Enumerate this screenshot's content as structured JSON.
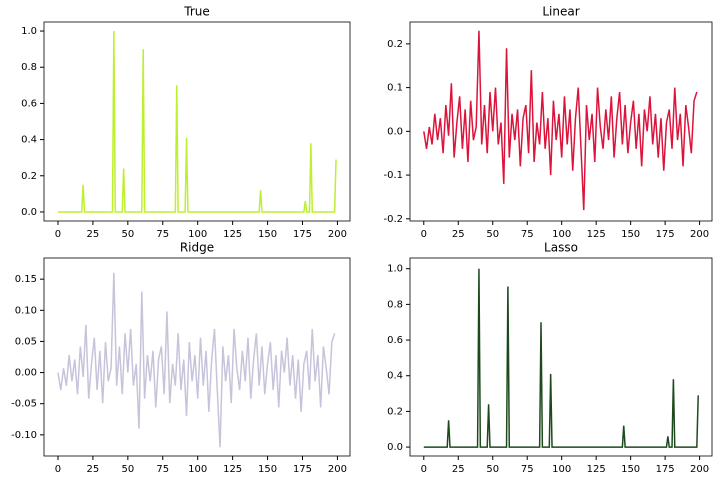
{
  "chart_data": [
    {
      "type": "line",
      "title": "True",
      "color": "#bdf02e",
      "x": [
        0,
        17,
        18,
        19,
        39,
        40,
        41,
        46,
        47,
        48,
        60,
        61,
        62,
        84,
        85,
        86,
        91,
        92,
        93,
        144,
        145,
        146,
        176,
        177,
        178,
        180,
        181,
        182,
        198,
        199
      ],
      "values": [
        0,
        0,
        0.15,
        0,
        0,
        1,
        0,
        0,
        0.24,
        0,
        0,
        0.9,
        0,
        0,
        0.7,
        0,
        0,
        0.41,
        0,
        0,
        0.12,
        0,
        0,
        0.06,
        0,
        0,
        0.38,
        0,
        0,
        0.29
      ],
      "xlim": [
        -10,
        209
      ],
      "xticks": [
        0,
        25,
        50,
        75,
        100,
        125,
        150,
        175,
        200
      ],
      "ylim": [
        -0.05,
        1.05
      ],
      "yticks": [
        {
          "value": 0,
          "label": "0.0"
        },
        0.2,
        0.4,
        0.6,
        0.8,
        {
          "value": 1,
          "label": "1.0"
        }
      ]
    },
    {
      "type": "line",
      "title": "Linear",
      "color": "#dc143c",
      "x": [
        0,
        2,
        4,
        6,
        8,
        10,
        12,
        14,
        16,
        18,
        20,
        22,
        24,
        26,
        28,
        30,
        32,
        34,
        36,
        38,
        40,
        42,
        44,
        46,
        48,
        50,
        52,
        54,
        56,
        58,
        60,
        62,
        64,
        66,
        68,
        70,
        72,
        74,
        76,
        78,
        80,
        82,
        84,
        86,
        88,
        90,
        92,
        94,
        96,
        98,
        100,
        102,
        104,
        106,
        108,
        110,
        112,
        114,
        116,
        118,
        120,
        122,
        124,
        126,
        128,
        130,
        132,
        134,
        136,
        138,
        140,
        142,
        144,
        146,
        148,
        150,
        152,
        154,
        156,
        158,
        160,
        162,
        164,
        166,
        168,
        170,
        172,
        174,
        176,
        178,
        180,
        182,
        184,
        186,
        188,
        190,
        192,
        194,
        196,
        198
      ],
      "values": [
        0,
        -0.04,
        0.01,
        -0.03,
        0.04,
        -0.02,
        0.03,
        -0.05,
        0.06,
        -0.01,
        0.11,
        -0.06,
        0.02,
        0.08,
        -0.04,
        0.05,
        -0.07,
        0.07,
        -0.02,
        0.01,
        0.23,
        -0.03,
        0.06,
        -0.05,
        0.09,
        0,
        0.1,
        -0.03,
        0.02,
        -0.12,
        0.19,
        -0.06,
        0.04,
        -0.02,
        0.05,
        -0.08,
        0.03,
        0.06,
        -0.05,
        0.14,
        -0.07,
        0.02,
        -0.03,
        0.09,
        -0.04,
        0.03,
        -0.1,
        0.07,
        -0.02,
        0.04,
        -0.06,
        0.08,
        -0.03,
        0.05,
        -0.09,
        0.03,
        0.1,
        -0.04,
        -0.18,
        0.06,
        -0.02,
        0.04,
        -0.07,
        0.1,
        0.01,
        -0.04,
        0.05,
        -0.02,
        0.08,
        -0.06,
        0.03,
        0.09,
        -0.03,
        0.06,
        -0.05,
        0.02,
        0.07,
        -0.04,
        0.04,
        -0.08,
        0.05,
        0,
        0.08,
        -0.03,
        0.04,
        -0.06,
        0.03,
        -0.09,
        0.02,
        0.05,
        -0.04,
        0.1,
        -0.02,
        0.04,
        -0.08,
        0.06,
        0.01,
        -0.05,
        0.07,
        0.09
      ],
      "xlim": [
        -10,
        209
      ],
      "xticks": [
        0,
        25,
        50,
        75,
        100,
        125,
        150,
        175,
        200
      ],
      "ylim": [
        -0.205,
        0.25
      ],
      "yticks": [
        -0.2,
        -0.1,
        {
          "value": 0,
          "label": "0.0"
        },
        0.1,
        0.2
      ]
    },
    {
      "type": "line",
      "title": "Ridge",
      "color": "#c6c4da",
      "x": [
        0,
        2,
        4,
        6,
        8,
        10,
        12,
        14,
        16,
        18,
        20,
        22,
        24,
        26,
        28,
        30,
        32,
        34,
        36,
        38,
        40,
        42,
        44,
        46,
        48,
        50,
        52,
        54,
        56,
        58,
        60,
        62,
        64,
        66,
        68,
        70,
        72,
        74,
        76,
        78,
        80,
        82,
        84,
        86,
        88,
        90,
        92,
        94,
        96,
        98,
        100,
        102,
        104,
        106,
        108,
        110,
        112,
        114,
        116,
        118,
        120,
        122,
        124,
        126,
        128,
        130,
        132,
        134,
        136,
        138,
        140,
        142,
        144,
        146,
        148,
        150,
        152,
        154,
        156,
        158,
        160,
        162,
        164,
        166,
        168,
        170,
        172,
        174,
        176,
        178,
        180,
        182,
        184,
        186,
        188,
        190,
        192,
        194,
        196,
        198
      ],
      "values": [
        0,
        -0.028,
        0.007,
        -0.021,
        0.028,
        -0.014,
        0.021,
        -0.035,
        0.042,
        -0.007,
        0.077,
        -0.042,
        0.014,
        0.056,
        -0.028,
        0.035,
        -0.049,
        0.049,
        -0.014,
        0.007,
        0.16,
        -0.021,
        0.042,
        -0.035,
        0.063,
        0,
        0.07,
        -0.021,
        0.014,
        -0.09,
        0.13,
        -0.042,
        0.028,
        -0.014,
        0.035,
        -0.056,
        0.021,
        0.042,
        -0.035,
        0.098,
        -0.049,
        0.014,
        -0.021,
        0.063,
        -0.028,
        0.021,
        -0.07,
        0.049,
        -0.014,
        0.028,
        -0.042,
        0.056,
        -0.021,
        0.035,
        -0.063,
        0.021,
        0.07,
        -0.028,
        -0.12,
        0.042,
        -0.014,
        0.028,
        -0.049,
        0.07,
        0.007,
        -0.028,
        0.035,
        -0.014,
        0.056,
        -0.042,
        0.021,
        0.063,
        -0.021,
        0.042,
        -0.035,
        0.014,
        0.049,
        -0.028,
        0.028,
        -0.056,
        0.035,
        0,
        0.056,
        -0.021,
        0.028,
        -0.042,
        0.021,
        -0.063,
        0.014,
        0.035,
        -0.028,
        0.07,
        -0.014,
        0.028,
        -0.056,
        0.042,
        0.007,
        -0.035,
        0.049,
        0.063
      ],
      "xlim": [
        -10,
        209
      ],
      "xticks": [
        0,
        25,
        50,
        75,
        100,
        125,
        150,
        175,
        200
      ],
      "ylim": [
        -0.134,
        0.184
      ],
      "yticks": [
        {
          "value": -0.1,
          "label": "-0.10"
        },
        -0.05,
        {
          "value": 0,
          "label": "0.00"
        },
        0.05,
        {
          "value": 0.1,
          "label": "0.10"
        },
        0.15
      ]
    },
    {
      "type": "line",
      "title": "Lasso",
      "color": "#1d4a1d",
      "x": [
        0,
        17,
        18,
        19,
        39,
        40,
        41,
        46,
        47,
        48,
        60,
        61,
        62,
        84,
        85,
        86,
        91,
        92,
        93,
        144,
        145,
        146,
        176,
        177,
        178,
        180,
        181,
        182,
        198,
        199
      ],
      "values": [
        0,
        0,
        0.15,
        0,
        0,
        1,
        0,
        0,
        0.24,
        0,
        0,
        0.9,
        0,
        0,
        0.7,
        0,
        0,
        0.41,
        0,
        0,
        0.12,
        0,
        0,
        0.06,
        0,
        0,
        0.38,
        0,
        0,
        0.29
      ],
      "xlim": [
        -10,
        209
      ],
      "xticks": [
        0,
        25,
        50,
        75,
        100,
        125,
        150,
        175,
        200
      ],
      "ylim": [
        -0.05,
        1.06
      ],
      "yticks": [
        {
          "value": 0,
          "label": "0.0"
        },
        0.2,
        0.4,
        0.6,
        0.8,
        {
          "value": 1,
          "label": "1.0"
        }
      ]
    }
  ]
}
